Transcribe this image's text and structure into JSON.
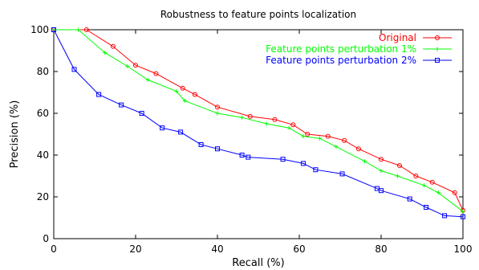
{
  "chart_data": {
    "type": "line",
    "title": "Robustness to feature points localization",
    "xlabel": "Recall (%)",
    "ylabel": "Precision (%)",
    "xlim": [
      0,
      100
    ],
    "ylim": [
      0,
      100
    ],
    "xticks": [
      0,
      20,
      40,
      60,
      80,
      100
    ],
    "yticks": [
      0,
      20,
      40,
      60,
      80,
      100
    ],
    "grid": false,
    "legend_position": "top-right",
    "series": [
      {
        "name": "Original",
        "color": "#ff0000",
        "marker": "circle",
        "points": [
          [
            0,
            100
          ],
          [
            8,
            100
          ],
          [
            14.5,
            92
          ],
          [
            20,
            83
          ],
          [
            25,
            79
          ],
          [
            31.5,
            72
          ],
          [
            34.5,
            69
          ],
          [
            40,
            63
          ],
          [
            48,
            58.5
          ],
          [
            54,
            57
          ],
          [
            58.5,
            54.5
          ],
          [
            62,
            50
          ],
          [
            67,
            49
          ],
          [
            71,
            47
          ],
          [
            74.5,
            43
          ],
          [
            80,
            38
          ],
          [
            84.5,
            35
          ],
          [
            88.5,
            30
          ],
          [
            92.5,
            27
          ],
          [
            98,
            22
          ],
          [
            100,
            13.5
          ]
        ]
      },
      {
        "name": "Feature points perturbation 1%",
        "color": "#00ff00",
        "marker": "plus",
        "points": [
          [
            0,
            100
          ],
          [
            6,
            100
          ],
          [
            12.5,
            89
          ],
          [
            18,
            82.5
          ],
          [
            23,
            76
          ],
          [
            30,
            70.5
          ],
          [
            32,
            66
          ],
          [
            40,
            60
          ],
          [
            46,
            58
          ],
          [
            52,
            55
          ],
          [
            57.5,
            53
          ],
          [
            61,
            49
          ],
          [
            65,
            48
          ],
          [
            69,
            44
          ],
          [
            76,
            37
          ],
          [
            80,
            32.5
          ],
          [
            84,
            30
          ],
          [
            90.5,
            25.5
          ],
          [
            94,
            22
          ],
          [
            100,
            13
          ]
        ]
      },
      {
        "name": "Feature points perturbation 2%",
        "color": "#0000ff",
        "marker": "square",
        "points": [
          [
            0,
            100
          ],
          [
            5,
            81
          ],
          [
            11,
            69
          ],
          [
            16.5,
            64
          ],
          [
            21.5,
            60
          ],
          [
            26.5,
            53
          ],
          [
            31,
            51
          ],
          [
            36,
            45
          ],
          [
            40,
            43
          ],
          [
            46,
            40
          ],
          [
            47.5,
            39
          ],
          [
            56,
            38
          ],
          [
            61,
            36
          ],
          [
            64,
            33
          ],
          [
            70.5,
            31
          ],
          [
            79,
            24
          ],
          [
            80,
            23
          ],
          [
            87,
            19
          ],
          [
            91,
            15
          ],
          [
            95.5,
            11
          ],
          [
            100,
            10.5
          ]
        ]
      }
    ]
  }
}
